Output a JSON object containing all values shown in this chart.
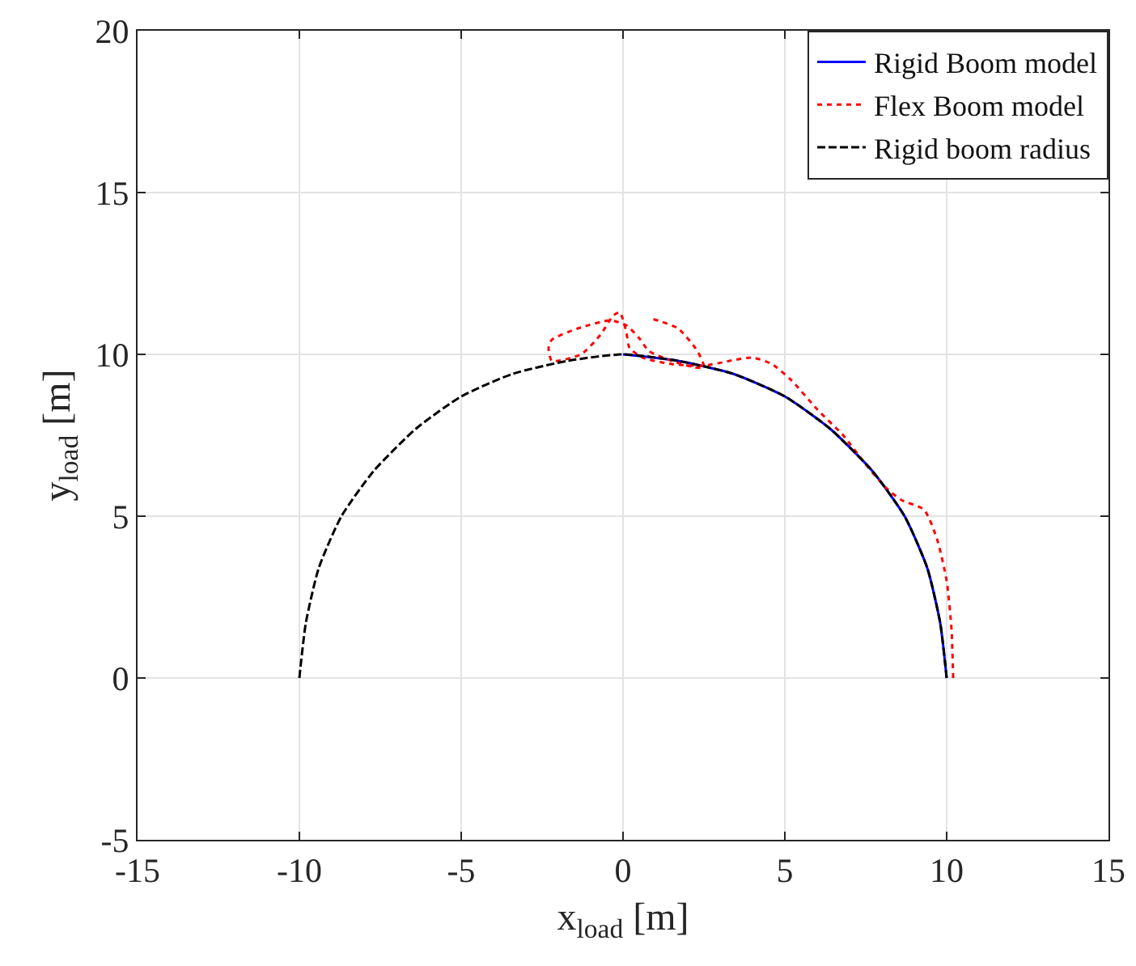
{
  "chart_data": {
    "type": "line",
    "xlabel": "x$_{load}$ [m]",
    "ylabel": "y$_{load}$ [m]",
    "xlim": [
      -15,
      15
    ],
    "xticks": [
      -15,
      -10,
      -5,
      0,
      5,
      10,
      15
    ],
    "ylim": [
      -5,
      20
    ],
    "yticks": [
      -5,
      0,
      5,
      10,
      15,
      20
    ],
    "grid": true,
    "legend": "top right",
    "marker": "none",
    "series": [
      {
        "name": "Rigid Boom model",
        "color": "#0000ff",
        "line_style": "solid",
        "x": [
          0,
          1.7,
          3.4,
          5,
          6.4,
          7.7,
          8.7,
          9.4,
          9.8,
          10
        ],
        "values": [
          10,
          9.8,
          9.4,
          8.7,
          7.7,
          6.4,
          5,
          3.4,
          1.7,
          0
        ]
      },
      {
        "name": "Flex Boom model",
        "color": "#ff0000",
        "line_style": "dotted",
        "x": [
          10.2,
          10.15,
          10,
          9.7,
          9.3,
          8.6,
          8.1,
          7.5,
          6.8,
          6,
          5.2,
          4.6,
          4,
          3.3,
          2.5,
          1.5,
          0.6,
          0.2,
          0.1,
          -0.1,
          -0.3,
          -0.7,
          -1.3,
          -2.2,
          -2.3,
          -2.2,
          -1.4,
          -0.4,
          0.1,
          0.5,
          0.8,
          1.5,
          2.2,
          2.5,
          2.3,
          1.7,
          0.9
        ],
        "values": [
          0,
          1.5,
          3,
          4.3,
          5.2,
          5.5,
          5.9,
          6.6,
          7.5,
          8.3,
          9.2,
          9.7,
          9.9,
          9.8,
          9.65,
          9.7,
          9.9,
          10.2,
          10.7,
          11.3,
          11.2,
          10.6,
          10,
          9.8,
          10.2,
          10.45,
          10.8,
          11.05,
          10.9,
          10.5,
          10.1,
          9.8,
          9.6,
          9.6,
          10.1,
          10.8,
          11.1
        ]
      },
      {
        "name": "Rigid boom radius",
        "color": "#000000",
        "line_style": "dashed",
        "x": [
          -10,
          -9.8,
          -9.4,
          -8.7,
          -7.7,
          -6.4,
          -5,
          -3.4,
          -1.7,
          0,
          1.7,
          3.4,
          5,
          6.4,
          7.7,
          8.7,
          9.4,
          9.8,
          10
        ],
        "values": [
          0,
          1.7,
          3.4,
          5,
          6.4,
          7.7,
          8.7,
          9.4,
          9.8,
          10,
          9.8,
          9.4,
          8.7,
          7.7,
          6.4,
          5,
          3.4,
          1.7,
          0
        ]
      }
    ]
  }
}
